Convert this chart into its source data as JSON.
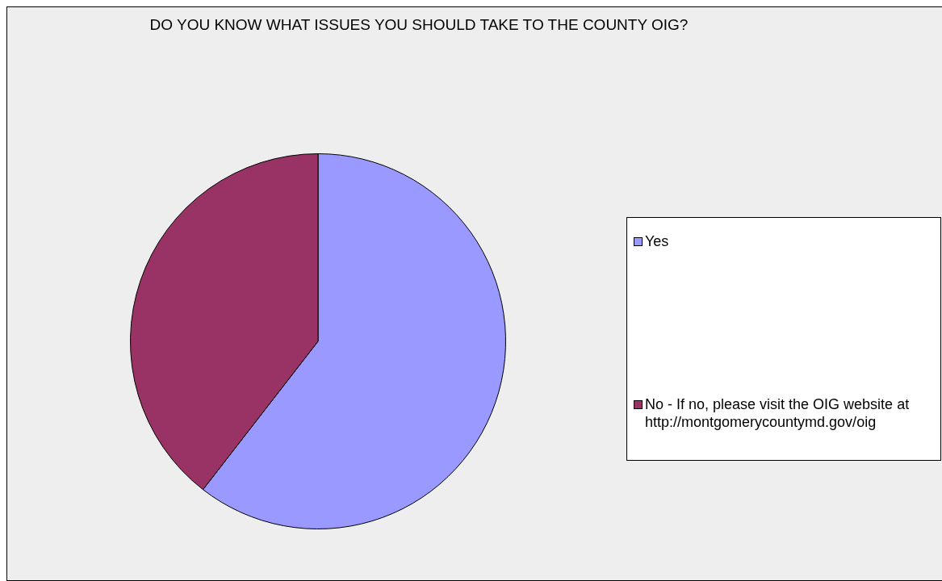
{
  "chart_data": {
    "type": "pie",
    "title": "DO YOU KNOW WHAT ISSUES YOU SHOULD TAKE TO THE COUNTY OIG?",
    "categories": [
      "Yes",
      "No - If no, please visit the OIG website at http://montgomerycountymd.gov/oig"
    ],
    "values": [
      60.5,
      39.5
    ],
    "colors": [
      "#9999ff",
      "#993366"
    ],
    "legend": "right"
  }
}
